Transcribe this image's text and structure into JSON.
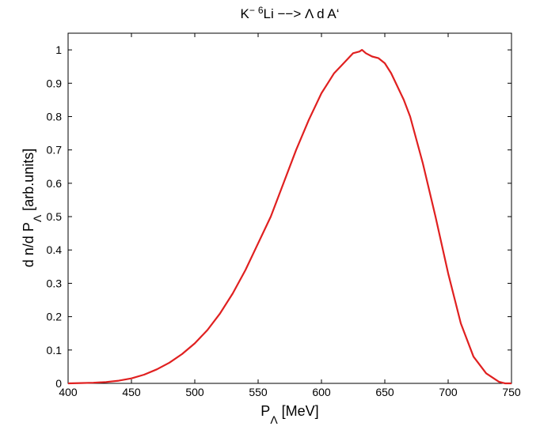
{
  "chart_data": {
    "type": "line",
    "title": {
      "main": "K",
      "sup1": "−",
      "sup2": "6",
      "rest": "Li −−> Λ d A‘"
    },
    "xlabel": {
      "main": "P",
      "sub": "Λ",
      "rest": " [MeV]"
    },
    "ylabel": {
      "main": "d n/d P",
      "sub": "Λ",
      "rest": " [arb.units]"
    },
    "xlim": [
      400,
      750
    ],
    "ylim": [
      0,
      1.05
    ],
    "xticks": [
      400,
      450,
      500,
      550,
      600,
      650,
      700,
      750
    ],
    "yticks": [
      0,
      0.1,
      0.2,
      0.3,
      0.4,
      0.5,
      0.6,
      0.7,
      0.8,
      0.9,
      1
    ],
    "grid": false,
    "series": [
      {
        "color": "#e02020",
        "x": [
          400,
          410,
          420,
          430,
          440,
          450,
          460,
          470,
          480,
          490,
          500,
          510,
          520,
          530,
          540,
          550,
          560,
          570,
          580,
          590,
          600,
          605,
          610,
          615,
          620,
          625,
          630,
          632,
          635,
          640,
          645,
          650,
          655,
          660,
          665,
          670,
          675,
          680,
          690,
          700,
          710,
          720,
          730,
          740,
          745,
          750
        ],
        "y": [
          0.0,
          0.001,
          0.002,
          0.004,
          0.008,
          0.015,
          0.026,
          0.042,
          0.062,
          0.088,
          0.12,
          0.16,
          0.21,
          0.27,
          0.34,
          0.42,
          0.5,
          0.6,
          0.7,
          0.79,
          0.87,
          0.9,
          0.93,
          0.95,
          0.97,
          0.99,
          0.995,
          1.0,
          0.99,
          0.98,
          0.975,
          0.96,
          0.93,
          0.89,
          0.85,
          0.8,
          0.73,
          0.66,
          0.5,
          0.33,
          0.18,
          0.08,
          0.03,
          0.005,
          0.0,
          0.0
        ]
      }
    ]
  }
}
